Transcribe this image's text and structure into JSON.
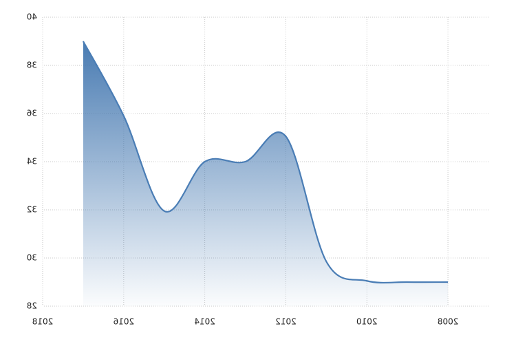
{
  "chart_data": {
    "type": "area",
    "x": [
      2008,
      2009,
      2010,
      2011,
      2012,
      2013,
      2014,
      2015,
      2016,
      2017
    ],
    "series": [
      {
        "color": "#4a7db5",
        "values": [
          29.0,
          29.0,
          29.05,
          29.85,
          35.05,
          34.0,
          34.0,
          31.95,
          35.9,
          39.0
        ]
      }
    ],
    "xlim": [
      2007,
      2018
    ],
    "xticks": [
      2008,
      2010,
      2012,
      2014,
      2016,
      2018
    ],
    "ylim": [
      28,
      40
    ],
    "yticks": [
      28,
      30,
      32,
      34,
      36,
      38,
      40
    ],
    "grid": true,
    "mirrored": true
  }
}
